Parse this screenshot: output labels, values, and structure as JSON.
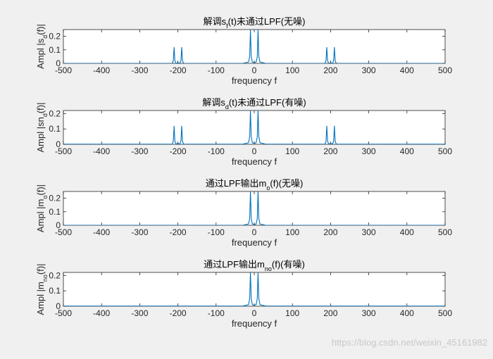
{
  "chart_data": [
    {
      "type": "line",
      "title": {
        "pre": "解调s",
        "sub": "f",
        "post": "(t)未通过LPF(无噪)"
      },
      "ylabel": {
        "pre": "Ampl |s",
        "sub": "d",
        "post": "(f)|"
      },
      "xlabel": "frequency f",
      "xlim": [
        -500,
        500
      ],
      "ylim": [
        0,
        0.25
      ],
      "xticks": [
        "-500",
        "-400",
        "-300",
        "-200",
        "-100",
        "0",
        "100",
        "200",
        "300",
        "400",
        "500"
      ],
      "yticks": [
        "0",
        "0.1",
        "0.2"
      ],
      "series": [
        {
          "color": "#0072bd",
          "x": [
            -500,
            -215,
            -212,
            -210,
            -208,
            -205,
            -200,
            -195,
            -192,
            -190,
            -188,
            -185,
            -30,
            -15,
            -12,
            -10,
            -8,
            -5,
            0,
            5,
            8,
            10,
            12,
            15,
            30,
            185,
            188,
            190,
            192,
            195,
            200,
            205,
            208,
            210,
            212,
            215,
            500
          ],
          "y": [
            0,
            0,
            0.02,
            0.12,
            0.02,
            0,
            0.005,
            0,
            0.02,
            0.12,
            0.02,
            0,
            0,
            0.01,
            0.05,
            0.25,
            0.05,
            0.01,
            0.005,
            0.01,
            0.05,
            0.25,
            0.05,
            0.01,
            0,
            0,
            0.02,
            0.12,
            0.02,
            0,
            0.005,
            0,
            0.02,
            0.12,
            0.02,
            0,
            0
          ]
        }
      ]
    },
    {
      "type": "line",
      "title": {
        "pre": "解调s",
        "sub": "d",
        "post": "(t)未通过LPF(有噪)"
      },
      "ylabel": {
        "pre": "Ampl |sn",
        "sub": "d",
        "post": "(f)|"
      },
      "xlabel": "frequency f",
      "xlim": [
        -500,
        500
      ],
      "ylim": [
        0,
        0.22
      ],
      "xticks": [
        "-500",
        "-400",
        "-300",
        "-200",
        "-100",
        "0",
        "100",
        "200",
        "300",
        "400",
        "500"
      ],
      "yticks": [
        "0",
        "0.1",
        "0.2"
      ],
      "series": [
        {
          "color": "#0072bd",
          "x": [
            -500,
            -215,
            -212,
            -210,
            -208,
            -205,
            -200,
            -195,
            -192,
            -190,
            -188,
            -185,
            -30,
            -15,
            -12,
            -10,
            -8,
            -5,
            0,
            5,
            8,
            10,
            12,
            15,
            30,
            185,
            188,
            190,
            192,
            195,
            200,
            205,
            208,
            210,
            212,
            215,
            500
          ],
          "y": [
            0.001,
            0.001,
            0.02,
            0.12,
            0.02,
            0.002,
            0.006,
            0.002,
            0.02,
            0.12,
            0.02,
            0.001,
            0.001,
            0.01,
            0.05,
            0.22,
            0.05,
            0.01,
            0.006,
            0.01,
            0.05,
            0.22,
            0.05,
            0.01,
            0.001,
            0.001,
            0.02,
            0.12,
            0.02,
            0.002,
            0.006,
            0.002,
            0.02,
            0.12,
            0.02,
            0.001,
            0.001
          ]
        }
      ]
    },
    {
      "type": "line",
      "title": {
        "pre": "通过LPF输出m",
        "sub": "o",
        "post": "(f)(无噪)"
      },
      "ylabel": {
        "pre": "Ampl |m",
        "sub": "o",
        "post": "(f)|"
      },
      "xlabel": "frequency f",
      "xlim": [
        -500,
        500
      ],
      "ylim": [
        0,
        0.25
      ],
      "xticks": [
        "-500",
        "-400",
        "-300",
        "-200",
        "-100",
        "0",
        "100",
        "200",
        "300",
        "400",
        "500"
      ],
      "yticks": [
        "0",
        "0.1",
        "0.2"
      ],
      "series": [
        {
          "color": "#0072bd",
          "x": [
            -500,
            -30,
            -15,
            -12,
            -10,
            -8,
            -5,
            0,
            5,
            8,
            10,
            12,
            15,
            30,
            500
          ],
          "y": [
            0,
            0,
            0.01,
            0.05,
            0.25,
            0.05,
            0.01,
            0.005,
            0.01,
            0.05,
            0.25,
            0.05,
            0.01,
            0,
            0
          ]
        }
      ]
    },
    {
      "type": "line",
      "title": {
        "pre": "通过LPF输出m",
        "sub": "no",
        "post": "(f)(有噪)"
      },
      "ylabel": {
        "pre": "Ampl |m",
        "sub": "no",
        "post": "(f)|"
      },
      "xlabel": "frequency f",
      "xlim": [
        -500,
        500
      ],
      "ylim": [
        0,
        0.22
      ],
      "xticks": [
        "-500",
        "-400",
        "-300",
        "-200",
        "-100",
        "0",
        "100",
        "200",
        "300",
        "400",
        "500"
      ],
      "yticks": [
        "0",
        "0.1",
        "0.2"
      ],
      "series": [
        {
          "color": "#0072bd",
          "x": [
            -500,
            -30,
            -15,
            -12,
            -10,
            -8,
            -5,
            0,
            5,
            8,
            10,
            12,
            15,
            30,
            500
          ],
          "y": [
            0.001,
            0.001,
            0.01,
            0.05,
            0.22,
            0.05,
            0.01,
            0.006,
            0.01,
            0.05,
            0.22,
            0.05,
            0.01,
            0.001,
            0.001
          ]
        }
      ]
    }
  ],
  "watermark": "https://blog.csdn.net/weixin_45161982"
}
